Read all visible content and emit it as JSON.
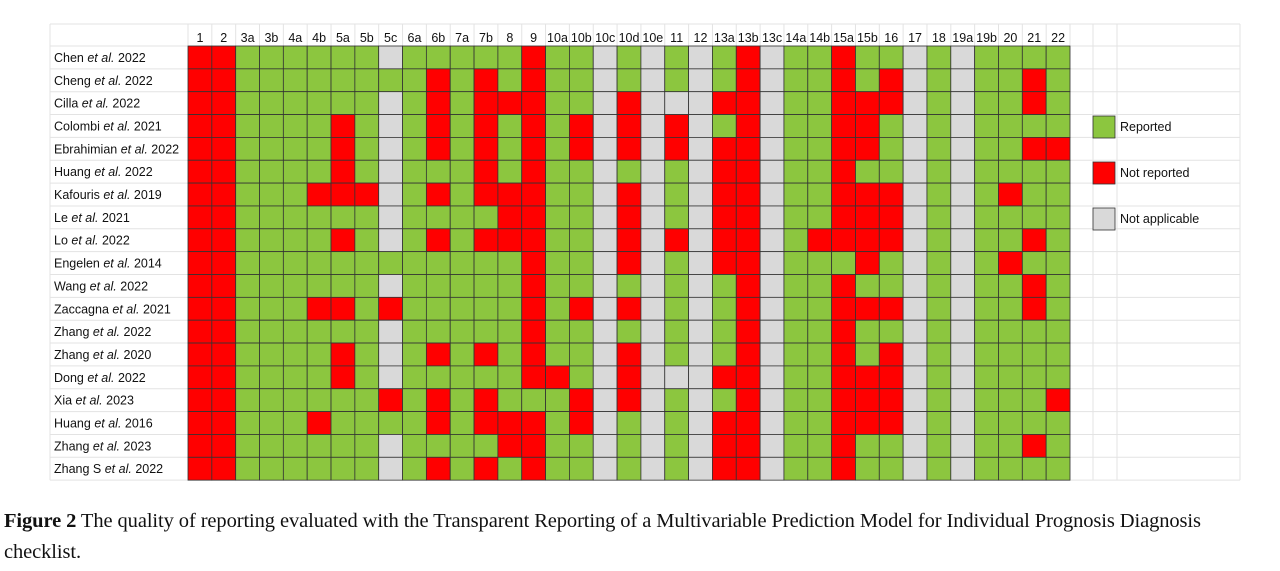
{
  "chart_data": {
    "type": "heatmap",
    "columns": [
      "1",
      "2",
      "3a",
      "3b",
      "4a",
      "4b",
      "5a",
      "5b",
      "5c",
      "6a",
      "6b",
      "7a",
      "7b",
      "8",
      "9",
      "10a",
      "10b",
      "10c",
      "10d",
      "10e",
      "11",
      "12",
      "13a",
      "13b",
      "13c",
      "14a",
      "14b",
      "15a",
      "15b",
      "16",
      "17",
      "18",
      "19a",
      "19b",
      "20",
      "21",
      "22"
    ],
    "rows": [
      {
        "label_pre": "Chen ",
        "label_em": "et al.",
        "label_post": " 2022",
        "values": "RRGGGGGGNGGGGGRGGNGNGNGRNGGRGGNGNGGGG"
      },
      {
        "label_pre": "Cheng ",
        "label_em": "et al.",
        "label_post": " 2022",
        "values": "RRGGGGGGGGRGRGRGGNGNGNGRNGGRGRNGNGGRG"
      },
      {
        "label_pre": "Cilla ",
        "label_em": "et al.",
        "label_post": " 2022",
        "values": "RRGGGGGGNGRGRRRGGNRNNNRRNGGRRRNGNGGRG"
      },
      {
        "label_pre": "Colombi ",
        "label_em": "et al.",
        "label_post": " 2021",
        "values": "RRGGGGRGNGRGRGRGRNRNRNGRNGGRRGNGNGGGG"
      },
      {
        "label_pre": "Ebrahimian ",
        "label_em": "et al.",
        "label_post": " 2022",
        "values": "RRGGGGRGNGRGRGRGRNRNRNRRNGGRRGNGNGGRR"
      },
      {
        "label_pre": "Huang ",
        "label_em": "et al.",
        "label_post": " 2022",
        "values": "RRGGGGRGNGGGRGRGGNGNGNRRNGGRGGNGNGGGG"
      },
      {
        "label_pre": "Kafouris ",
        "label_em": "et al.",
        "label_post": " 2019",
        "values": "RRGGGRRRNGRGRRRGGNRNGNRRNGGRRRNGNGRGG"
      },
      {
        "label_pre": "Le ",
        "label_em": "et al.",
        "label_post": " 2021",
        "values": "RRGGGGGGNGGGGRRGGNRNGNRRNGGRRRNGNGGGG"
      },
      {
        "label_pre": "Lo ",
        "label_em": "et al.",
        "label_post": " 2022",
        "values": "RRGGGGRGNGRGRRRGGNRNRNRRNGRRRRNGNGGRG"
      },
      {
        "label_pre": "Engelen ",
        "label_em": "et al.",
        "label_post": " 2014",
        "values": "RRGGGGGGGGGGGGRGGNRNGNRRNGGGRGNGNGRGG"
      },
      {
        "label_pre": "Wang ",
        "label_em": "et al.",
        "label_post": " 2022",
        "values": "RRGGGGGGNGGGGGRGGNGNGNGRNGGRGGNGNGGRG"
      },
      {
        "label_pre": "Zaccagna ",
        "label_em": "et al.",
        "label_post": " 2021",
        "values": "RRGGGRRGRGGGGGRGRNRNGNGRNGGRRRNGNGGRG"
      },
      {
        "label_pre": "Zhang ",
        "label_em": "et al.",
        "label_post": " 2022",
        "values": "RRGGGGGGNGGGGGRGGNGNGNGRNGGRGGNGNGGGG"
      },
      {
        "label_pre": "Zhang ",
        "label_em": "et al.",
        "label_post": " 2020",
        "values": "RRGGGGRGNGRGRGRGGNRNGNGRNGGRGRNGNGGGG"
      },
      {
        "label_pre": "Dong ",
        "label_em": "et al.",
        "label_post": " 2022",
        "values": "RRGGGGRGNGGGGGRRGNRNNNRRNGGRRRNGNGGGG"
      },
      {
        "label_pre": "Xia ",
        "label_em": "et al.",
        "label_post": " 2023",
        "values": "RRGGGGGGRGRGRGGGRNRNGNGRNGGRRRNGNGGGR"
      },
      {
        "label_pre": "Huang ",
        "label_em": "et al.",
        "label_post": " 2016",
        "values": "RRGGGRGGGGRGRRRGRNGNGNRRNGGRRRNGNGGGG"
      },
      {
        "label_pre": "Zhang ",
        "label_em": "et al.",
        "label_post": " 2023",
        "values": "RRGGGGGGNGGGGRRGGNGNGNRRNGGRGGNGNGGRG"
      },
      {
        "label_pre": "Zhang S ",
        "label_em": "et al.",
        "label_post": " 2022",
        "values": "RRGGGGGGNGRGRGRGGNGNGNRRNGGRGGNGNGGGG"
      }
    ],
    "legend": [
      {
        "code": "G",
        "label": "Reported",
        "color": "#8cc63f"
      },
      {
        "code": "R",
        "label": "Not reported",
        "color": "#ff0000"
      },
      {
        "code": "N",
        "label": "Not applicable",
        "color": "#d9d9d9"
      }
    ],
    "legend_position": "right",
    "grid": true
  },
  "caption": {
    "label": "Figure 2",
    "text": " The quality of reporting evaluated with the Transparent Reporting of a Multivariable Prediction Model for Individual Prognosis Diagnosis checklist."
  }
}
